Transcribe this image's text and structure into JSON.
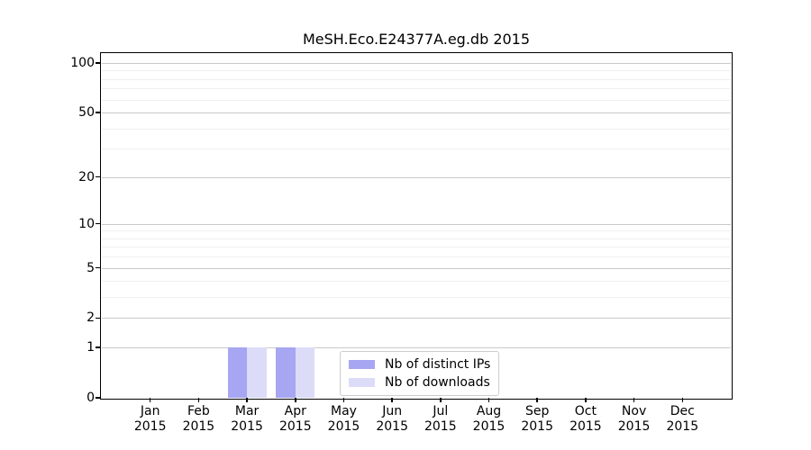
{
  "chart_data": {
    "type": "bar",
    "title": "MeSH.Eco.E24377A.eg.db 2015",
    "categories": [
      "Jan",
      "Feb",
      "Mar",
      "Apr",
      "May",
      "Jun",
      "Jul",
      "Aug",
      "Sep",
      "Oct",
      "Nov",
      "Dec"
    ],
    "year": "2015",
    "series": [
      {
        "name": "Nb of distinct IPs",
        "color": "#a6a6f2",
        "values": [
          0,
          0,
          1,
          1,
          0,
          0,
          0,
          0,
          0,
          0,
          0,
          0
        ]
      },
      {
        "name": "Nb of downloads",
        "color": "#dcdcf9",
        "values": [
          0,
          0,
          1,
          1,
          0,
          0,
          0,
          0,
          0,
          0,
          0,
          0
        ]
      }
    ],
    "yscale": "log1p",
    "ylim": [
      0,
      100
    ],
    "yticks_major": [
      0,
      1,
      2,
      5,
      10,
      20,
      50,
      100
    ],
    "ytick_labels": [
      "0",
      "1",
      "2",
      "5",
      "10",
      "20",
      "50",
      "100"
    ],
    "yticks_minor": [
      3,
      4,
      6,
      7,
      8,
      9,
      30,
      40,
      60,
      70,
      80,
      90
    ],
    "grid": "on",
    "legend_position": "lower center"
  },
  "colors": {
    "axis": "#000000",
    "grid_major": "#c9c9c9",
    "grid_minor": "#efefef",
    "legend_border": "#cccccc",
    "background": "#ffffff"
  }
}
